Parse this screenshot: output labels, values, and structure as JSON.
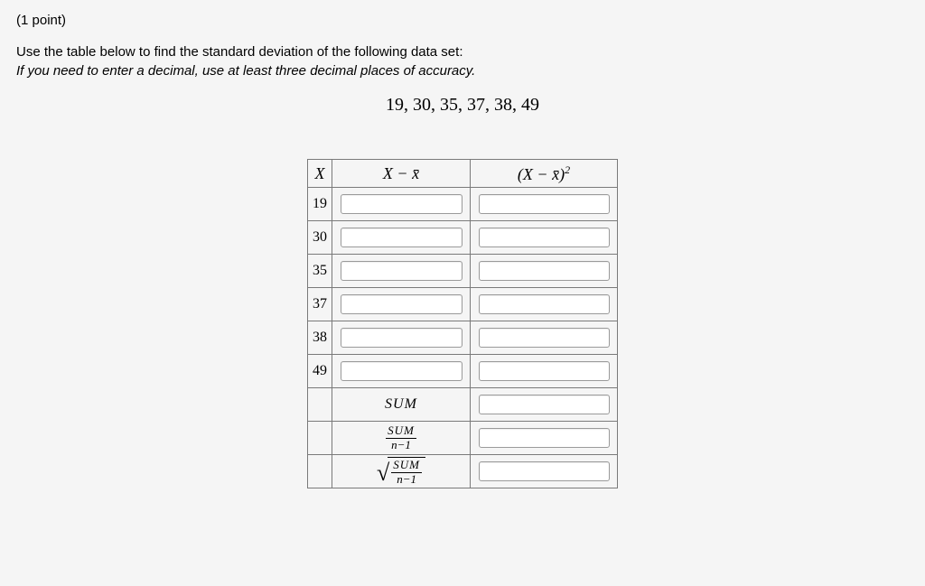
{
  "points_label": "(1 point)",
  "prompt_line1": "Use the table below to find the standard deviation of the following data set:",
  "prompt_line2": "If you need to enter a decimal, use at least three decimal places of accuracy.",
  "dataset_label": "19, 30, 35, 37, 38, 49",
  "header": {
    "x": "X",
    "dev": "X − x̄",
    "sq": "(X − x̄)²"
  },
  "x_values": [
    "19",
    "30",
    "35",
    "37",
    "38",
    "49"
  ],
  "summary": {
    "sum_label": "SUM",
    "frac_num": "SUM",
    "frac_den": "n−1"
  },
  "colors": {
    "page_bg": "#f5f5f5",
    "border": "#7a7a7a",
    "input_border": "#9a9a9a",
    "text": "#000000"
  }
}
